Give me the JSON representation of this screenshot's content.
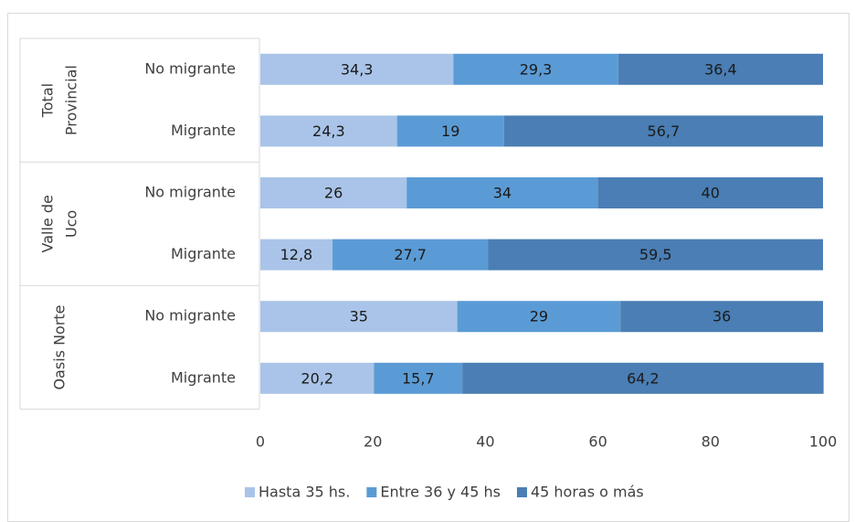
{
  "chart_data": {
    "type": "stacked-bar-horizontal",
    "groups": [
      {
        "label": [
          "Total",
          "Provincial"
        ],
        "categories": [
          "No migrante",
          "Migrante"
        ]
      },
      {
        "label": [
          "Valle de",
          "Uco"
        ],
        "categories": [
          "No migrante",
          "Migrante"
        ]
      },
      {
        "label": [
          "Oasis Norte"
        ],
        "categories": [
          "No migrante",
          "Migrante"
        ]
      }
    ],
    "series": [
      {
        "name": "Hasta 35 hs.",
        "color": "#a9c4e8",
        "values": [
          34.3,
          24.3,
          26,
          12.8,
          35,
          20.2
        ],
        "value_labels": [
          "34,3",
          "24,3",
          "26",
          "12,8",
          "35",
          "20,2"
        ]
      },
      {
        "name": "Entre 36 y 45 hs",
        "color": "#5b9bd5",
        "values": [
          29.3,
          19,
          34,
          27.7,
          29,
          15.7
        ],
        "value_labels": [
          "29,3",
          "19",
          "34",
          "27,7",
          "29",
          "15,7"
        ]
      },
      {
        "name": "45 horas o más",
        "color": "#4a7eb4",
        "values": [
          36.4,
          56.7,
          40,
          59.5,
          36,
          64.2
        ],
        "value_labels": [
          "36,4",
          "56,7",
          "40",
          "59,5",
          "36",
          "64,2"
        ]
      }
    ],
    "xlim": [
      0,
      100
    ],
    "xticks": [
      0,
      20,
      40,
      60,
      80,
      100
    ],
    "grid": false,
    "legend": "bottom"
  }
}
